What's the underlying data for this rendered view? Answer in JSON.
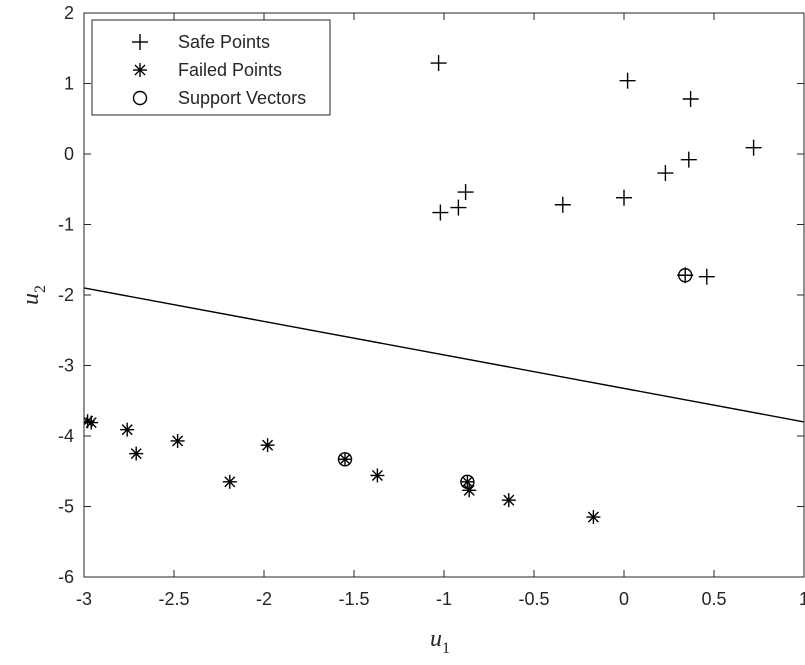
{
  "chart_data": {
    "type": "scatter",
    "title": "",
    "xlabel": "u",
    "xlabel_sub": "1",
    "ylabel": "u",
    "ylabel_sub": "2",
    "xlim": [
      -3,
      1
    ],
    "ylim": [
      -6,
      2
    ],
    "grid": false,
    "legend_position": "top-left",
    "x_ticks": [
      -3,
      -2.5,
      -2,
      -1.5,
      -1,
      -0.5,
      0,
      0.5,
      1
    ],
    "x_tick_labels": [
      "-3",
      "-2.5",
      "-2",
      "-1.5",
      "-1",
      "-0.5",
      "0",
      "0.5",
      "1"
    ],
    "y_ticks": [
      -6,
      -5,
      -4,
      -3,
      -2,
      -1,
      0,
      1,
      2
    ],
    "y_tick_labels": [
      "-6",
      "-5",
      "-4",
      "-3",
      "-2",
      "-1",
      "0",
      "1",
      "2"
    ],
    "series": [
      {
        "name": "Safe Points",
        "marker": "plus",
        "points": [
          [
            -1.03,
            1.29
          ],
          [
            0.02,
            1.04
          ],
          [
            0.37,
            0.78
          ],
          [
            0.72,
            0.09
          ],
          [
            0.36,
            -0.08
          ],
          [
            0.23,
            -0.27
          ],
          [
            0.0,
            -0.62
          ],
          [
            -0.34,
            -0.72
          ],
          [
            -0.88,
            -0.54
          ],
          [
            -0.92,
            -0.76
          ],
          [
            -1.02,
            -0.83
          ],
          [
            0.34,
            -1.72
          ],
          [
            0.46,
            -1.74
          ]
        ]
      },
      {
        "name": "Failed Points",
        "marker": "asterisk",
        "points": [
          [
            -2.98,
            -3.79
          ],
          [
            -2.96,
            -3.81
          ],
          [
            -2.76,
            -3.91
          ],
          [
            -2.71,
            -4.25
          ],
          [
            -2.48,
            -4.07
          ],
          [
            -2.19,
            -4.65
          ],
          [
            -1.98,
            -4.13
          ],
          [
            -1.55,
            -4.33
          ],
          [
            -1.37,
            -4.56
          ],
          [
            -0.87,
            -4.65
          ],
          [
            -0.86,
            -4.77
          ],
          [
            -0.64,
            -4.91
          ],
          [
            -0.17,
            -5.15
          ]
        ]
      },
      {
        "name": "Support Vectors",
        "marker": "circle",
        "points": [
          [
            0.34,
            -1.72
          ],
          [
            -1.55,
            -4.33
          ],
          [
            -0.87,
            -4.65
          ]
        ]
      }
    ],
    "decision_boundary": {
      "x": [
        -3,
        1
      ],
      "y": [
        -1.9,
        -3.8
      ]
    }
  }
}
